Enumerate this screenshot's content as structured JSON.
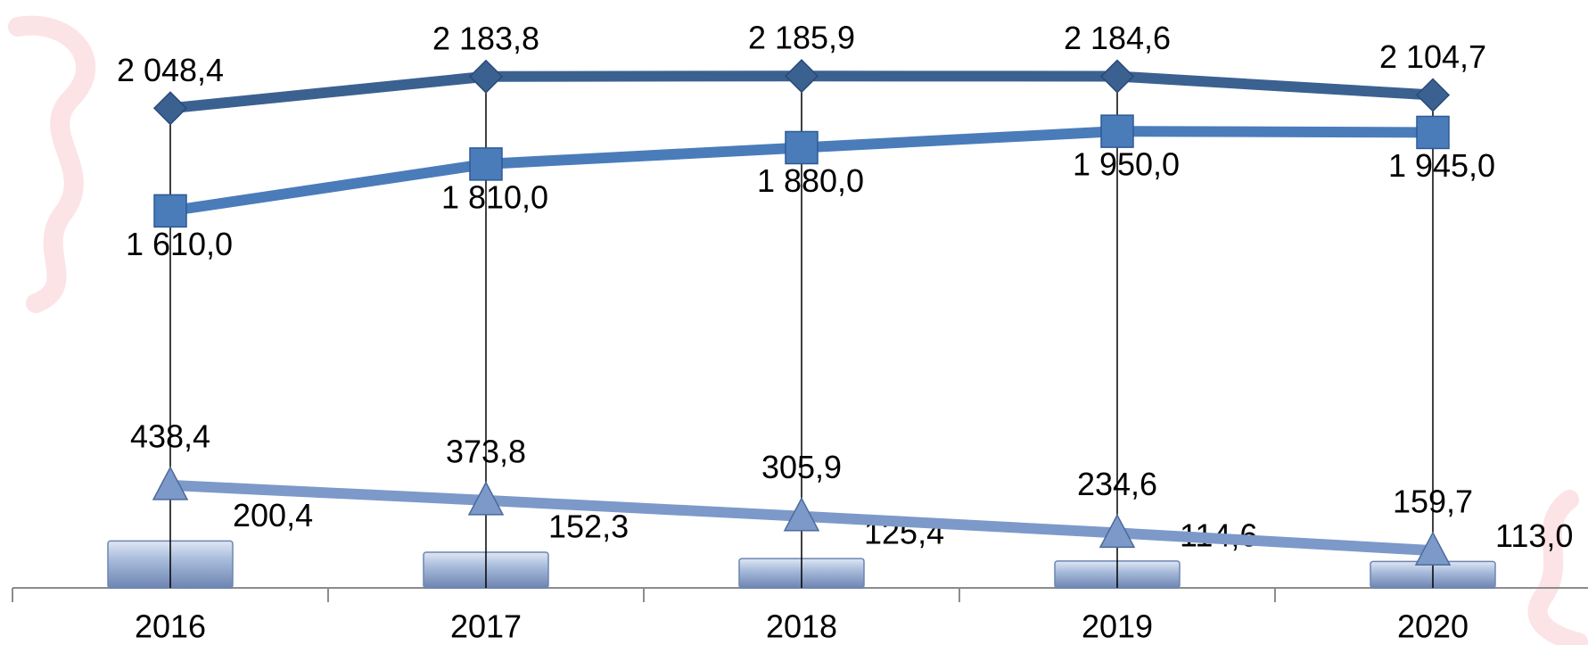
{
  "chart_data": {
    "type": "line",
    "categories": [
      "2016",
      "2017",
      "2018",
      "2019",
      "2020"
    ],
    "ylim": [
      0,
      2400
    ],
    "series": [
      {
        "type": "line",
        "marker": "diamond",
        "color": "#3b6190",
        "values": [
          2048.4,
          2183.8,
          2185.9,
          2184.6,
          2104.7
        ],
        "value_labels": [
          "2 048,4",
          "2 183,8",
          "2 185,9",
          "2 184,6",
          "2 104,7"
        ]
      },
      {
        "type": "line",
        "marker": "square",
        "color": "#4a7cba",
        "values": [
          1610.0,
          1810.0,
          1880.0,
          1950.0,
          1945.0
        ],
        "value_labels": [
          "1 610,0",
          "1 810,0",
          "1 880,0",
          "1 950,0",
          "1 945,0"
        ]
      },
      {
        "type": "line",
        "marker": "triangle",
        "color": "#7c99c9",
        "values": [
          438.4,
          373.8,
          305.9,
          234.6,
          159.7
        ],
        "value_labels": [
          "438,4",
          "373,8",
          "305,9",
          "234,6",
          "159,7"
        ]
      },
      {
        "type": "bar",
        "color": "#8fa6cc",
        "values": [
          200.4,
          152.3,
          125.4,
          114.6,
          113.0
        ],
        "value_labels": [
          "200,4",
          "152,3",
          "125,4",
          "114,6",
          "113,0"
        ]
      }
    ]
  }
}
